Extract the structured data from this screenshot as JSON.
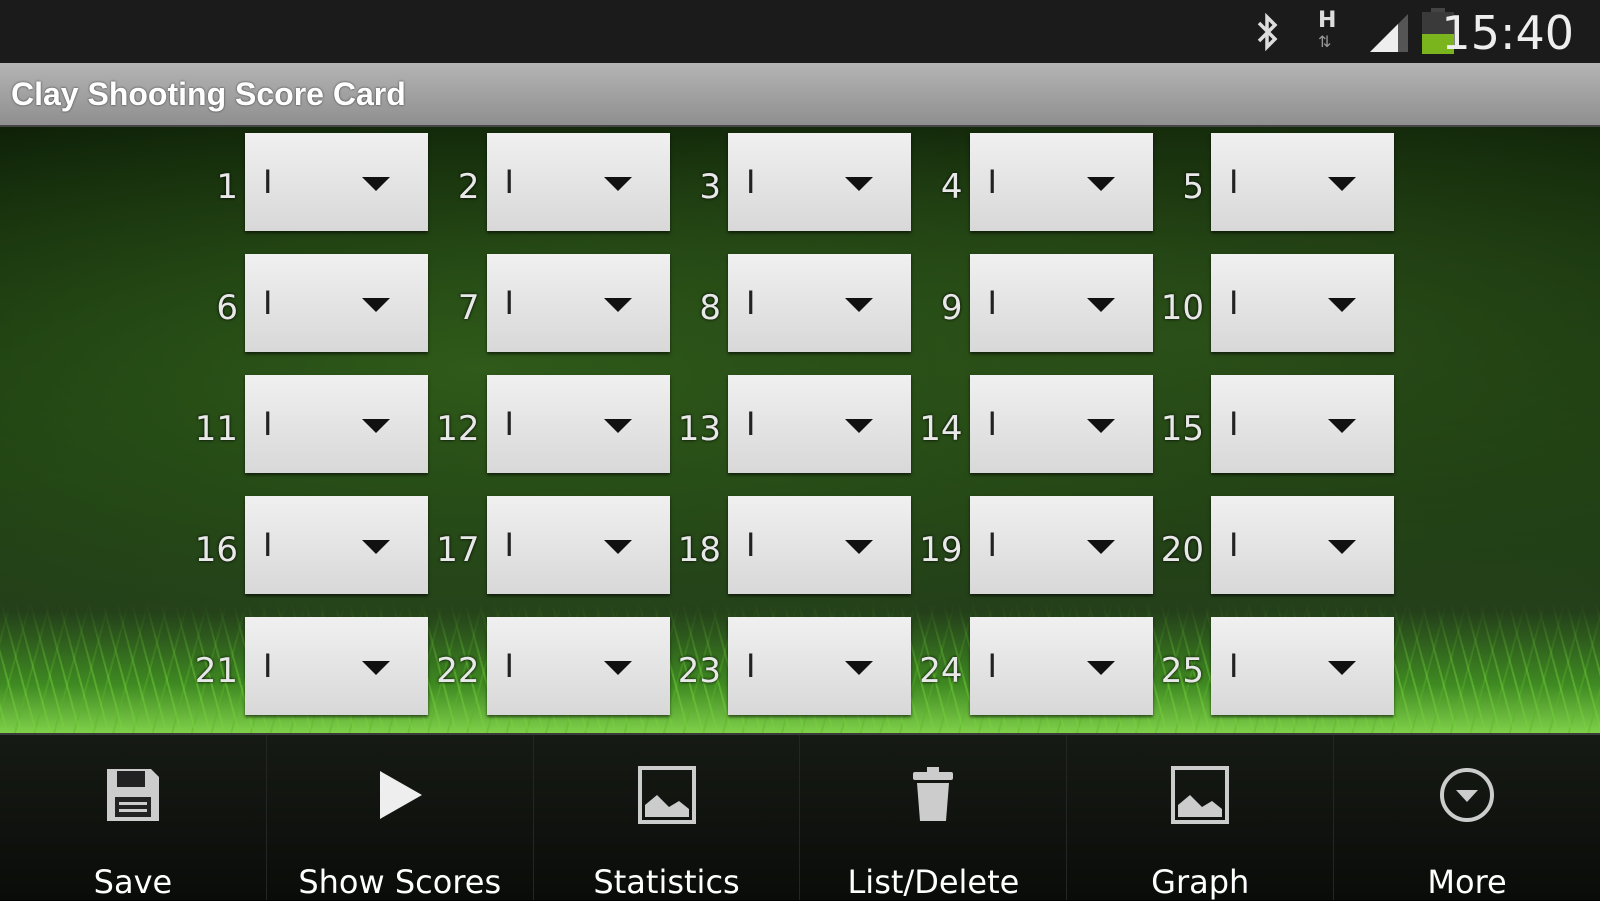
{
  "status_bar": {
    "time": "15:40",
    "network": "H",
    "icons": [
      "bluetooth-icon",
      "network-h-icon",
      "signal-icon",
      "battery-icon"
    ],
    "battery_color": "#7ab51d"
  },
  "title": "Clay Shooting Score Card",
  "grid": {
    "cells": [
      {
        "n": "1",
        "v": "I"
      },
      {
        "n": "2",
        "v": "I"
      },
      {
        "n": "3",
        "v": "I"
      },
      {
        "n": "4",
        "v": "I"
      },
      {
        "n": "5",
        "v": "I"
      },
      {
        "n": "6",
        "v": "I"
      },
      {
        "n": "7",
        "v": "I"
      },
      {
        "n": "8",
        "v": "I"
      },
      {
        "n": "9",
        "v": "I"
      },
      {
        "n": "10",
        "v": "I"
      },
      {
        "n": "11",
        "v": "I"
      },
      {
        "n": "12",
        "v": "I"
      },
      {
        "n": "13",
        "v": "I"
      },
      {
        "n": "14",
        "v": "I"
      },
      {
        "n": "15",
        "v": "I"
      },
      {
        "n": "16",
        "v": "I"
      },
      {
        "n": "17",
        "v": "I"
      },
      {
        "n": "18",
        "v": "I"
      },
      {
        "n": "19",
        "v": "I"
      },
      {
        "n": "20",
        "v": "I"
      },
      {
        "n": "21",
        "v": "I"
      },
      {
        "n": "22",
        "v": "I"
      },
      {
        "n": "23",
        "v": "I"
      },
      {
        "n": "24",
        "v": "I"
      },
      {
        "n": "25",
        "v": "I"
      }
    ]
  },
  "actions": [
    {
      "label": "Save",
      "icon": "save-icon"
    },
    {
      "label": "Show Scores",
      "icon": "play-icon"
    },
    {
      "label": "Statistics",
      "icon": "image-icon"
    },
    {
      "label": "List/Delete",
      "icon": "trash-icon"
    },
    {
      "label": "Graph",
      "icon": "image-icon"
    },
    {
      "label": "More",
      "icon": "more-icon"
    }
  ]
}
